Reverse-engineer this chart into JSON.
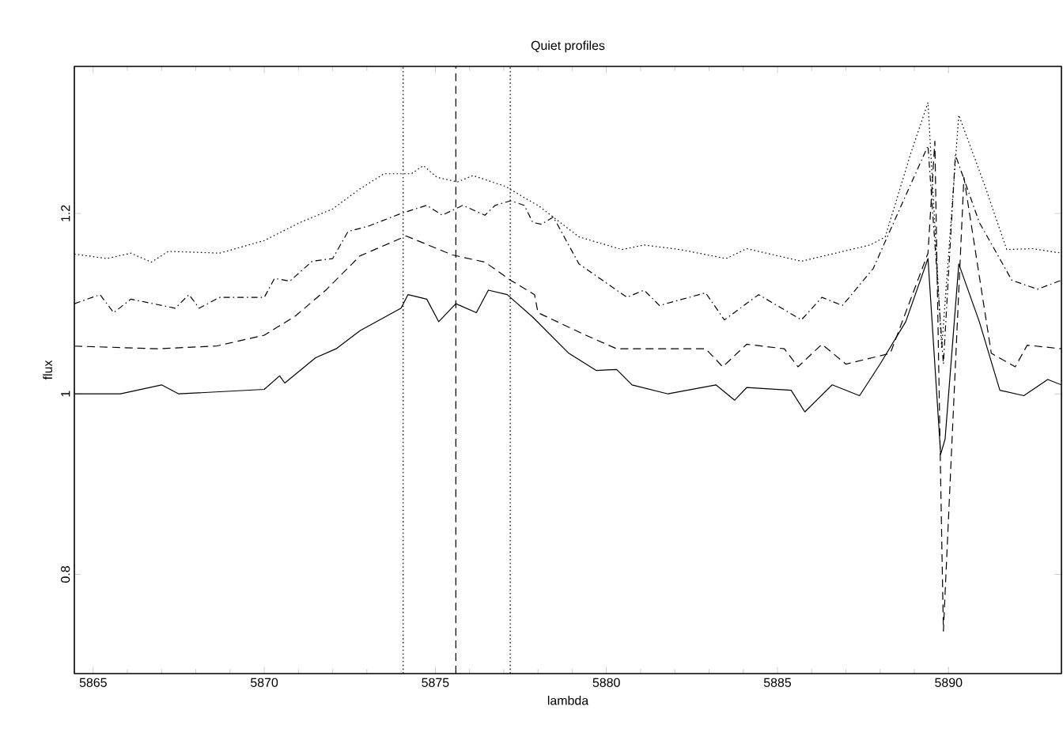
{
  "chart_data": {
    "type": "line",
    "title": "Quiet profiles",
    "xlabel": "lambda",
    "ylabel": "flux",
    "xlim": [
      5864.45,
      5893.3
    ],
    "ylim": [
      0.69,
      1.363
    ],
    "xticks": [
      5865,
      5870,
      5875,
      5880,
      5885,
      5890
    ],
    "yticks": [
      {
        "value": 0.8,
        "label": "0.8"
      },
      {
        "value": 1,
        "label": "1"
      },
      {
        "value": 1.2,
        "label": "1.2"
      }
    ],
    "ref_lines": [
      {
        "axis": "x",
        "value": 5874.06,
        "line_style": "dotted",
        "color": "#000000"
      },
      {
        "axis": "x",
        "value": 5875.6,
        "line_style": "dashed",
        "color": "#000000"
      },
      {
        "axis": "x",
        "value": 5877.19,
        "line_style": "dotted",
        "color": "#000000"
      }
    ],
    "series": [
      {
        "color": "#000000",
        "line_style": "solid",
        "x": [
          5864.45,
          5865.8,
          5867.0,
          5867.5,
          5870.0,
          5870.45,
          5870.6,
          5871.5,
          5872.1,
          5872.8,
          5874.0,
          5874.2,
          5874.75,
          5875.1,
          5875.6,
          5876.2,
          5876.55,
          5877.1,
          5877.85,
          5878.9,
          5879.7,
          5880.3,
          5880.75,
          5881.8,
          5883.2,
          5883.75,
          5884.1,
          5885.4,
          5885.8,
          5886.6,
          5887.4,
          5888.0,
          5888.75,
          5889.4,
          5889.77,
          5889.9,
          5890.3,
          5890.9,
          5891.5,
          5892.2,
          5892.9,
          5893.3
        ],
        "values": [
          1.0,
          1.0,
          1.01,
          1.0,
          1.005,
          1.02,
          1.012,
          1.04,
          1.05,
          1.07,
          1.095,
          1.11,
          1.105,
          1.08,
          1.1,
          1.09,
          1.115,
          1.11,
          1.085,
          1.045,
          1.026,
          1.027,
          1.01,
          1.0,
          1.01,
          0.993,
          1.007,
          1.004,
          0.98,
          1.01,
          0.998,
          1.033,
          1.08,
          1.15,
          0.933,
          0.95,
          1.144,
          1.08,
          1.004,
          0.998,
          1.016,
          1.01
        ]
      },
      {
        "color": "#000000",
        "line_style": "dashed",
        "x": [
          5864.45,
          5866.9,
          5868.6,
          5870.0,
          5870.9,
          5871.8,
          5872.8,
          5874.15,
          5875.5,
          5876.45,
          5877.2,
          5877.9,
          5878.0,
          5879.4,
          5880.3,
          5881.7,
          5882.9,
          5883.4,
          5884.1,
          5885.2,
          5885.6,
          5886.3,
          5887.0,
          5888.3,
          5889.4,
          5889.6,
          5889.77,
          5889.85,
          5890.45,
          5891.25,
          5891.95,
          5892.3,
          5893.3
        ],
        "values": [
          1.053,
          1.05,
          1.053,
          1.065,
          1.086,
          1.115,
          1.153,
          1.175,
          1.154,
          1.146,
          1.126,
          1.11,
          1.09,
          1.065,
          1.05,
          1.05,
          1.05,
          1.03,
          1.055,
          1.05,
          1.03,
          1.055,
          1.033,
          1.045,
          1.156,
          1.28,
          0.905,
          0.737,
          1.24,
          1.045,
          1.03,
          1.054,
          1.05
        ]
      },
      {
        "color": "#000000",
        "line_style": "dashdot",
        "x": [
          5864.45,
          5865.2,
          5865.6,
          5866.1,
          5867.4,
          5867.8,
          5868.1,
          5868.7,
          5870.0,
          5870.3,
          5870.75,
          5871.4,
          5872.0,
          5872.45,
          5873.05,
          5874.0,
          5874.75,
          5875.2,
          5875.8,
          5876.45,
          5876.75,
          5877.2,
          5877.6,
          5877.85,
          5878.1,
          5878.45,
          5879.2,
          5880.6,
          5881.1,
          5881.55,
          5882.9,
          5883.45,
          5884.45,
          5885.7,
          5886.3,
          5886.9,
          5887.8,
          5888.75,
          5889.4,
          5889.85,
          5890.2,
          5890.9,
          5891.85,
          5892.6,
          5893.3
        ],
        "values": [
          1.1,
          1.11,
          1.09,
          1.105,
          1.095,
          1.11,
          1.095,
          1.107,
          1.107,
          1.128,
          1.125,
          1.147,
          1.15,
          1.18,
          1.186,
          1.2,
          1.209,
          1.198,
          1.209,
          1.198,
          1.209,
          1.214,
          1.209,
          1.19,
          1.188,
          1.196,
          1.144,
          1.107,
          1.115,
          1.098,
          1.112,
          1.082,
          1.11,
          1.082,
          1.107,
          1.098,
          1.139,
          1.22,
          1.275,
          1.033,
          1.265,
          1.19,
          1.126,
          1.116,
          1.126
        ]
      },
      {
        "color": "#000000",
        "line_style": "dotted",
        "x": [
          5864.45,
          5865.4,
          5866.1,
          5866.7,
          5867.2,
          5868.7,
          5870.0,
          5871.05,
          5872.0,
          5872.75,
          5873.5,
          5874.3,
          5874.65,
          5875.05,
          5875.65,
          5876.1,
          5877.05,
          5877.85,
          5878.0,
          5879.2,
          5880.45,
          5881.1,
          5882.15,
          5883.5,
          5884.1,
          5885.7,
          5887.7,
          5888.15,
          5888.9,
          5889.4,
          5889.8,
          5890.3,
          5891.05,
          5891.7,
          5892.45,
          5893.3
        ],
        "values": [
          1.155,
          1.15,
          1.156,
          1.146,
          1.158,
          1.156,
          1.17,
          1.19,
          1.205,
          1.226,
          1.244,
          1.244,
          1.253,
          1.24,
          1.235,
          1.242,
          1.23,
          1.212,
          1.209,
          1.174,
          1.16,
          1.165,
          1.16,
          1.15,
          1.161,
          1.147,
          1.165,
          1.174,
          1.267,
          1.323,
          1.05,
          1.309,
          1.232,
          1.16,
          1.161,
          1.156
        ]
      }
    ]
  }
}
